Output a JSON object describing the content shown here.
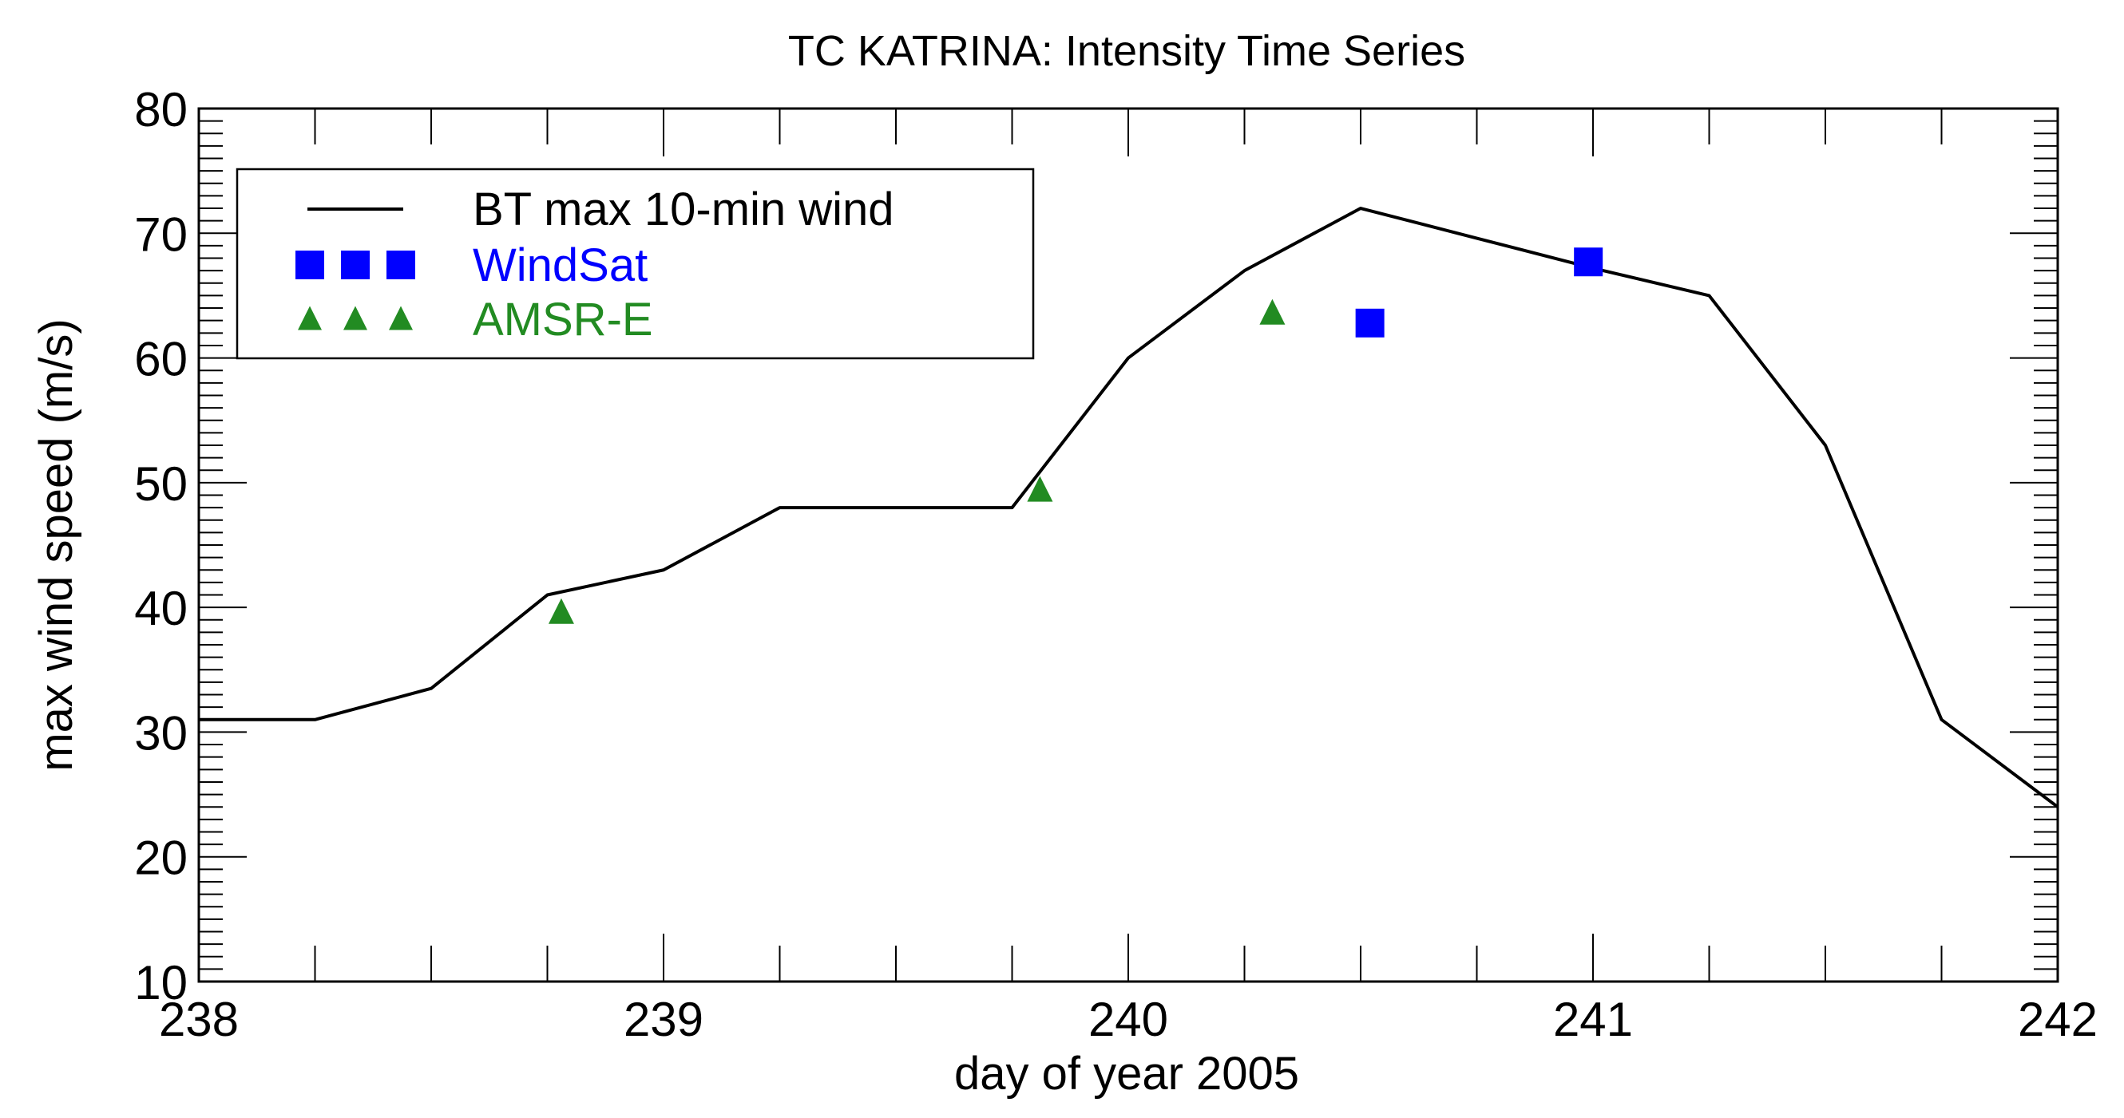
{
  "chart_data": {
    "type": "line",
    "title": "TC KATRINA: Intensity Time Series",
    "xlabel": "day of year 2005",
    "ylabel": "max wind speed (m/s)",
    "xlim": [
      238,
      242
    ],
    "ylim": [
      10,
      80
    ],
    "xticks": [
      238,
      239,
      240,
      241,
      242
    ],
    "yticks": [
      10,
      20,
      30,
      40,
      50,
      60,
      70,
      80
    ],
    "legend_position": "top-left",
    "grid": false,
    "series": [
      {
        "name": "BT max 10-min wind",
        "kind": "line",
        "color": "#000000",
        "x": [
          238.0,
          238.25,
          238.5,
          238.75,
          239.0,
          239.25,
          239.5,
          239.75,
          240.0,
          240.25,
          240.5,
          240.75,
          241.0,
          241.25,
          241.5,
          241.75,
          242.0
        ],
        "y": [
          31,
          31,
          33.5,
          41,
          43,
          48,
          48,
          48,
          60,
          67,
          72,
          69.6,
          67.2,
          65,
          53,
          31,
          24
        ]
      },
      {
        "name": "WindSat",
        "kind": "square-markers",
        "color": "#0000ff",
        "x": [
          240.52,
          240.99
        ],
        "y": [
          62.8,
          67.7
        ]
      },
      {
        "name": "AMSR-E",
        "kind": "triangle-markers",
        "color": "#228b22",
        "x": [
          238.78,
          239.81,
          240.31
        ],
        "y": [
          39.6,
          49.4,
          63.6
        ]
      }
    ]
  }
}
